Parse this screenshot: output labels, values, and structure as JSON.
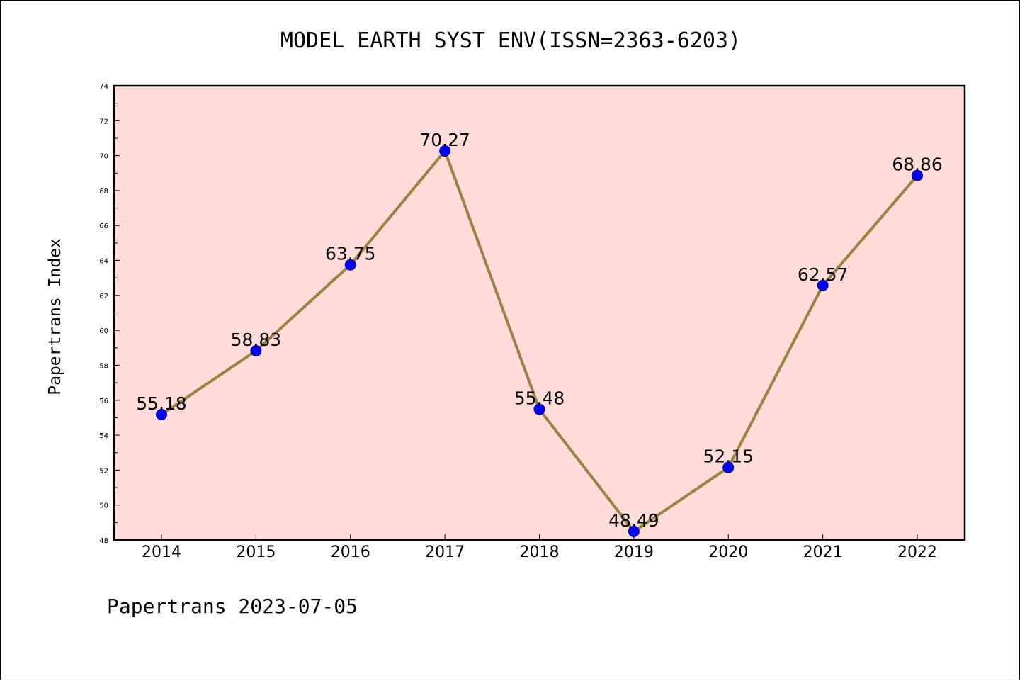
{
  "chart_data": {
    "type": "line",
    "title": "MODEL EARTH SYST ENV(ISSN=2363-6203)",
    "ylabel": "Papertrans Index",
    "xlabel": "",
    "footer": "Papertrans 2023-07-05",
    "categories": [
      "2014",
      "2015",
      "2016",
      "2017",
      "2018",
      "2019",
      "2020",
      "2021",
      "2022"
    ],
    "series": [
      {
        "values": [
          55.18,
          58.83,
          63.75,
          70.27,
          55.48,
          48.49,
          52.15,
          62.57,
          68.86
        ]
      }
    ],
    "data_labels": [
      "55.18",
      "58.83",
      "63.75",
      "70.27",
      "55.48",
      "48.49",
      "52.15",
      "62.57",
      "68.86"
    ],
    "ylim": [
      48,
      74
    ],
    "yticks": [
      "48",
      "50",
      "52",
      "54",
      "56",
      "58",
      "60",
      "62",
      "64",
      "66",
      "68",
      "70",
      "72",
      "74"
    ],
    "grid": false,
    "legend": "none",
    "colors": {
      "plot_background": "#ffdcd9",
      "line": "#9a8340",
      "marker": "#0000ff",
      "marker_edge": "#00008b"
    }
  }
}
